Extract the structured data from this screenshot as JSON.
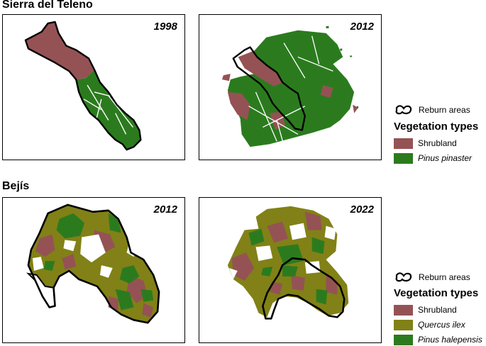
{
  "colors": {
    "shrubland": "#955254",
    "pinus_pinaster": "#2b7b1e",
    "quercus_ilex": "#818117",
    "pinus_halepensis": "#2b7b1e",
    "outline": "#000000"
  },
  "teleno": {
    "title": "Sierra del Teleno",
    "panels": [
      {
        "year": "1998"
      },
      {
        "year": "2012"
      }
    ],
    "legend": {
      "reburn_label": "Reburn areas",
      "title": "Vegetation types",
      "items": [
        {
          "label": "Shrubland",
          "color_key": "shrubland",
          "italic": false
        },
        {
          "label": "Pinus pinaster",
          "color_key": "pinus_pinaster",
          "italic": true
        }
      ]
    }
  },
  "bejis": {
    "title": "Bejís",
    "panels": [
      {
        "year": "2012"
      },
      {
        "year": "2022"
      }
    ],
    "legend": {
      "reburn_label": "Reburn areas",
      "title": "Vegetation types",
      "items": [
        {
          "label": "Shrubland",
          "color_key": "shrubland",
          "italic": false
        },
        {
          "label": "Quercus ilex",
          "color_key": "quercus_ilex",
          "italic": true
        },
        {
          "label": "Pinus halepensis",
          "color_key": "pinus_halepensis",
          "italic": true
        }
      ]
    }
  }
}
